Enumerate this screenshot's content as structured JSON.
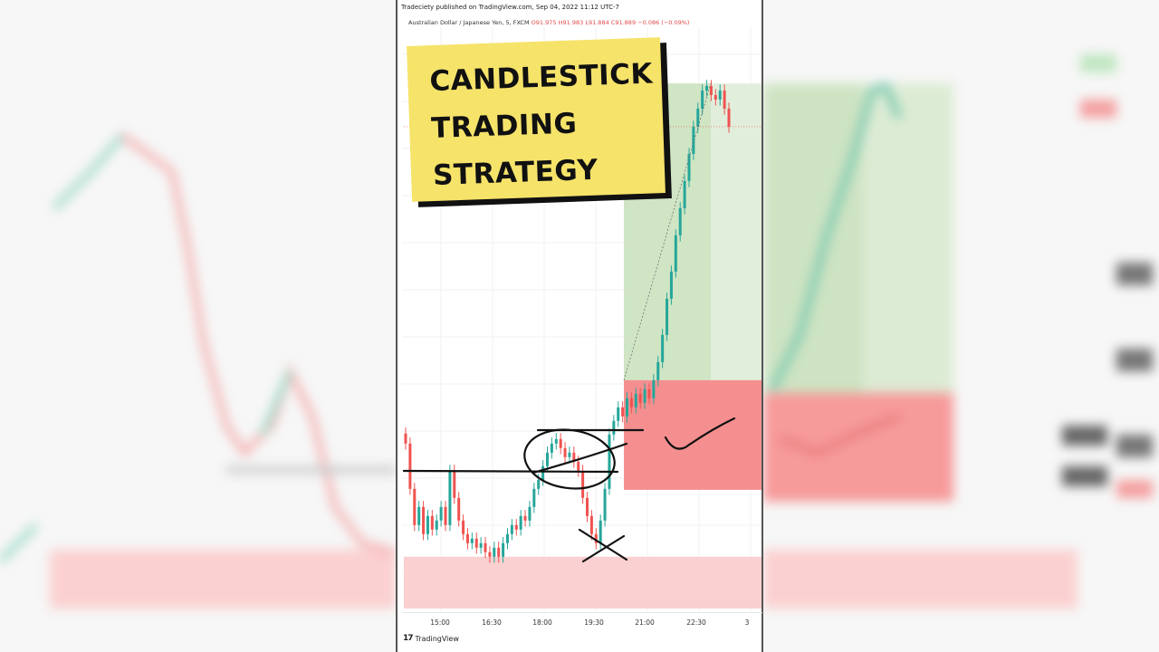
{
  "header": {
    "published": "Tradeciety published on TradingView.com, Sep 04, 2022 11:12 UTC-7",
    "symbol": "Australian Dollar / Japanese Yen, 5, FXCM",
    "open": "O91.975",
    "high": "H91.983",
    "low": "L91.884",
    "close": "C91.889",
    "change": "−0.086 (−0.09%)"
  },
  "overlay": {
    "lines": [
      "CANDLESTICK",
      "TRADING",
      "STRATEGY"
    ],
    "note_color": "#f6e36a"
  },
  "footer": {
    "logo_mark": "17",
    "logo_text": "TradingView"
  },
  "colors": {
    "up": "#26a69a",
    "down": "#ef5350",
    "profit_zone": "#cfe5c4",
    "loss_zone": "#f58f8f",
    "support_zone": "#fbd0d0"
  },
  "chart_data": {
    "type": "candlestick",
    "xlabel": "",
    "ylabel": "",
    "x_ticks": [
      "15:00",
      "16:30",
      "18:00",
      "19:30",
      "21:00",
      "22:30",
      "3"
    ],
    "ylim": [
      90.931,
      92.105
    ],
    "closes": [
      91.259,
      91.169,
      91.097,
      91.133,
      91.079,
      91.115,
      91.088,
      91.106,
      91.133,
      91.097,
      91.205,
      91.151,
      91.106,
      91.079,
      91.061,
      91.07,
      91.052,
      91.061,
      91.043,
      91.034,
      91.052,
      91.034,
      91.061,
      91.079,
      91.097,
      91.088,
      91.115,
      91.106,
      91.133,
      91.169,
      91.187,
      91.214,
      91.241,
      91.259,
      91.268,
      91.25,
      91.232,
      91.241,
      91.223,
      91.205,
      91.151,
      91.115,
      91.079,
      91.061,
      91.106,
      91.169,
      91.277,
      91.304,
      91.331,
      91.313,
      91.349,
      91.331,
      91.358,
      91.34,
      91.367,
      91.349,
      91.385,
      91.421,
      91.475,
      91.547,
      91.601,
      91.673,
      91.727,
      91.781,
      91.835,
      91.889,
      91.925,
      91.961,
      91.97,
      91.952,
      91.943,
      91.961,
      91.925,
      91.889
    ],
    "last_price": 91.889,
    "long_position": {
      "entry": 91.385,
      "target": 91.975,
      "stop": 91.167
    },
    "support_zone": [
      90.931,
      91.034
    ]
  }
}
